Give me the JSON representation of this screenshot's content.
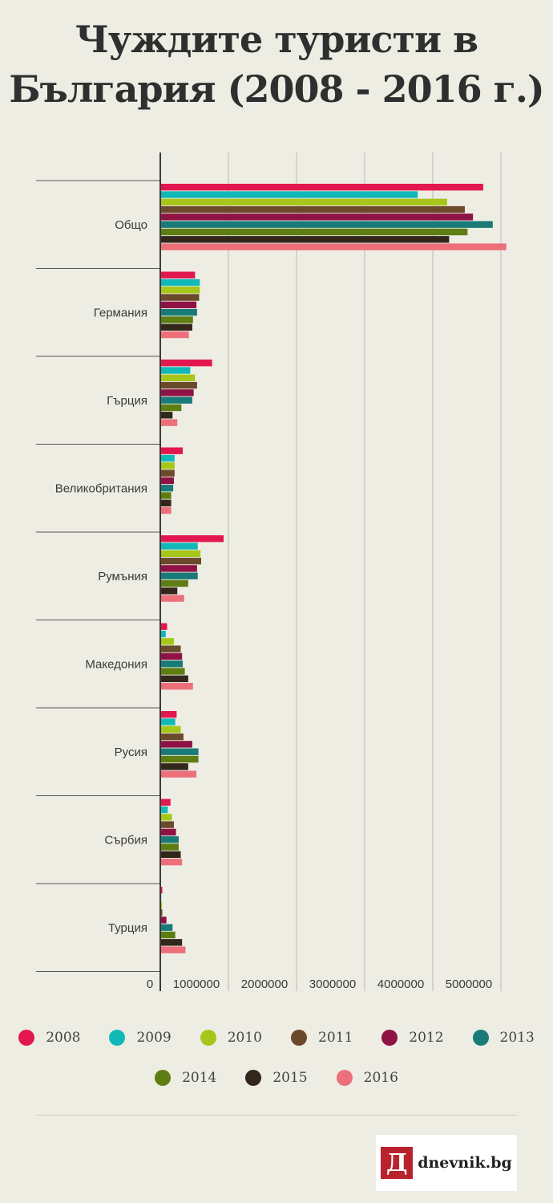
{
  "title_line1": "Чуждите туристи в",
  "title_line2": "България (2008 - 2016 г.)",
  "chart_data": {
    "type": "bar",
    "orientation": "horizontal",
    "title": "Чуждите туристи в България (2008 - 2016 г.)",
    "categories": [
      "Общо",
      "Германия",
      "Гърция",
      "Великобритания",
      "Румъния",
      "Македония",
      "Русия",
      "Сърбия",
      "Турция"
    ],
    "xlim": [
      0,
      5000000
    ],
    "x_ticks": [
      "0",
      "1000000",
      "2000000",
      "3000000",
      "4000000",
      "5000000"
    ],
    "grid": true,
    "legend_position": "bottom",
    "series": [
      {
        "name": "2008",
        "color": "#e3174f",
        "values": [
          4740000,
          510000,
          760000,
          330000,
          930000,
          100000,
          240000,
          150000,
          30000
        ]
      },
      {
        "name": "2009",
        "color": "#11b8b8",
        "values": [
          3780000,
          580000,
          440000,
          210000,
          550000,
          80000,
          220000,
          110000,
          15000
        ]
      },
      {
        "name": "2010",
        "color": "#a6c61a",
        "values": [
          4210000,
          580000,
          510000,
          210000,
          590000,
          200000,
          300000,
          170000,
          25000
        ]
      },
      {
        "name": "2011",
        "color": "#6b4a2b",
        "values": [
          4470000,
          570000,
          540000,
          210000,
          600000,
          300000,
          340000,
          200000,
          30000
        ]
      },
      {
        "name": "2012",
        "color": "#8e1244",
        "values": [
          4590000,
          530000,
          490000,
          200000,
          540000,
          320000,
          470000,
          230000,
          90000
        ]
      },
      {
        "name": "2013",
        "color": "#1a7a78",
        "values": [
          4880000,
          540000,
          470000,
          190000,
          550000,
          330000,
          560000,
          270000,
          180000
        ]
      },
      {
        "name": "2014",
        "color": "#5e7d12",
        "values": [
          4510000,
          480000,
          310000,
          160000,
          410000,
          360000,
          560000,
          270000,
          220000
        ]
      },
      {
        "name": "2015",
        "color": "#33261b",
        "values": [
          4240000,
          470000,
          180000,
          160000,
          250000,
          410000,
          410000,
          300000,
          320000
        ]
      },
      {
        "name": "2016",
        "color": "#ec6f7a",
        "values": [
          5080000,
          420000,
          250000,
          160000,
          350000,
          480000,
          530000,
          320000,
          370000
        ]
      }
    ]
  },
  "footer": {
    "logo_mark": "Д",
    "logo_text": "dnevnik.bg"
  }
}
